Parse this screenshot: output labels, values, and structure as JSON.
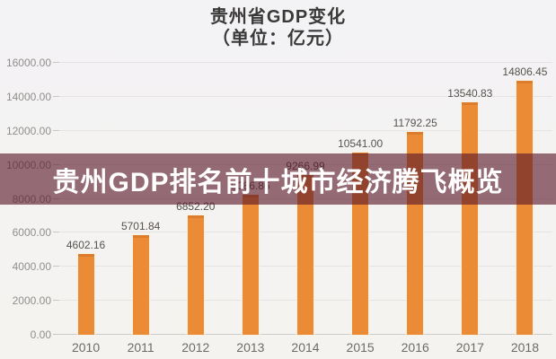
{
  "title": {
    "line1": "贵州省GDP变化",
    "line2": "（单位：亿元）"
  },
  "banner": {
    "text": "贵州GDP排名前十城市经济腾飞概览",
    "bg_color": "rgba(88,23,41,0.62)"
  },
  "chart_data": {
    "type": "bar",
    "title": "贵州省GDP变化",
    "subtitle": "（单位：亿元）",
    "unit": "亿元",
    "categories": [
      "2010",
      "2011",
      "2012",
      "2013",
      "2014",
      "2015",
      "2016",
      "2017",
      "2018"
    ],
    "values": [
      4602.16,
      5701.84,
      6852.2,
      8086.86,
      9266.99,
      10541.0,
      11792.25,
      13540.83,
      14806.45
    ],
    "value_labels": [
      "4602.16",
      "5701.84",
      "6852.20",
      "8086.86",
      "9266.99",
      "10541.00",
      "11792.25",
      "13540.83",
      "14806.45"
    ],
    "xlabel": "",
    "ylabel": "",
    "ylim": [
      0,
      16000
    ],
    "ytick_step": 2000,
    "ytick_decimals": 2,
    "grid": true,
    "legend": false,
    "value_labels_on": true,
    "bar_color": "#ec8b35",
    "bar_top_color": "#db7d2d",
    "background_color": "#f4f3f2",
    "gridline_color": "#e5e3e2",
    "label_color": "#56524e",
    "axis_label_color": "#908f8d"
  }
}
